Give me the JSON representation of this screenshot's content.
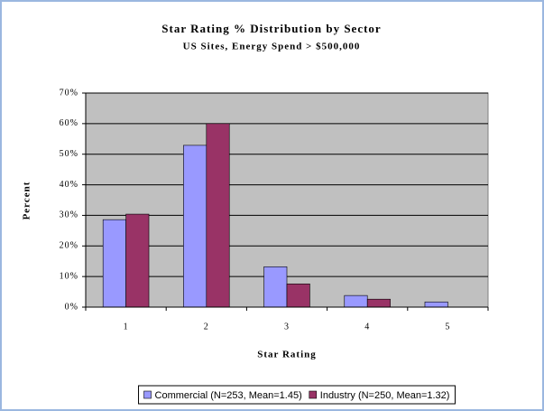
{
  "chart_data": {
    "type": "bar",
    "title": "Star Rating % Distribution by Sector",
    "subtitle": "US Sites, Energy Spend > $500,000",
    "x_label": "Star Rating",
    "y_label": "Percent",
    "categories": [
      "1",
      "2",
      "3",
      "4",
      "5"
    ],
    "series": [
      {
        "name": "Commercial (N=253, Mean=1.45)",
        "color": "#9999ff",
        "values": [
          28.6,
          52.9,
          13.2,
          3.8,
          1.7
        ]
      },
      {
        "name": "Industry (N=250, Mean=1.32)",
        "color": "#993366",
        "values": [
          30.4,
          60,
          7.6,
          2.6,
          0
        ]
      }
    ],
    "ylim": [
      0,
      70
    ],
    "yticks": [
      {
        "value": 0,
        "label": "0%"
      },
      {
        "value": 10,
        "label": "10%"
      },
      {
        "value": 20,
        "label": "20%"
      },
      {
        "value": 30,
        "label": "30%"
      },
      {
        "value": 40,
        "label": "40%"
      },
      {
        "value": 50,
        "label": "50%"
      },
      {
        "value": 60,
        "label": "60%"
      },
      {
        "value": 70,
        "label": "70%"
      }
    ],
    "grid": true,
    "legend": "bottom"
  }
}
